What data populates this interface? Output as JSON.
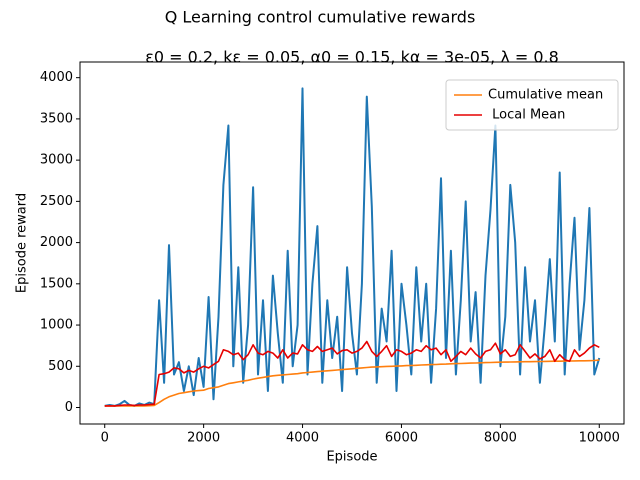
{
  "chart_data": {
    "type": "line",
    "title": "Q Learning control cumulative rewards",
    "subtitle": "ε0 = 0.2, kε = 0.05, α0 = 0.15, kα = 3e-05, λ = 0.8",
    "xlabel": "Episode",
    "ylabel": "Episode reward",
    "x": [
      0,
      100,
      200,
      300,
      400,
      500,
      600,
      700,
      800,
      900,
      1000,
      1100,
      1200,
      1300,
      1400,
      1500,
      1600,
      1700,
      1800,
      1900,
      2000,
      2100,
      2200,
      2300,
      2400,
      2500,
      2600,
      2700,
      2800,
      2900,
      3000,
      3100,
      3200,
      3300,
      3400,
      3500,
      3600,
      3700,
      3800,
      3900,
      4000,
      4100,
      4200,
      4300,
      4400,
      4500,
      4600,
      4700,
      4800,
      4900,
      5000,
      5100,
      5200,
      5300,
      5400,
      5500,
      5600,
      5700,
      5800,
      5900,
      6000,
      6100,
      6200,
      6300,
      6400,
      6500,
      6600,
      6700,
      6800,
      6900,
      7000,
      7100,
      7200,
      7300,
      7400,
      7500,
      7600,
      7700,
      7800,
      7900,
      8000,
      8100,
      8200,
      8300,
      8400,
      8500,
      8600,
      8700,
      8800,
      8900,
      9000,
      9100,
      9200,
      9300,
      9400,
      9500,
      9600,
      9700,
      9800,
      9900,
      10000
    ],
    "series": [
      {
        "color": "#1f77b4",
        "values": [
          20,
          30,
          20,
          40,
          80,
          30,
          20,
          50,
          30,
          60,
          40,
          1300,
          300,
          1970,
          400,
          550,
          200,
          500,
          150,
          600,
          250,
          1340,
          100,
          1100,
          2700,
          3420,
          500,
          1700,
          300,
          1000,
          2670,
          400,
          1300,
          200,
          1600,
          900,
          300,
          1900,
          500,
          1000,
          3870,
          400,
          1500,
          2200,
          300,
          1300,
          600,
          1100,
          200,
          1700,
          900,
          400,
          1500,
          3770,
          2440,
          300,
          1200,
          800,
          1900,
          200,
          1500,
          1000,
          400,
          1700,
          800,
          1500,
          300,
          1200,
          2780,
          600,
          1900,
          400,
          1300,
          2500,
          800,
          1400,
          300,
          1600,
          2400,
          3420,
          500,
          1100,
          2700,
          2000,
          400,
          1700,
          800,
          1300,
          300,
          1000,
          1800,
          800,
          2850,
          400,
          1500,
          2300,
          700,
          1300,
          2420,
          400,
          600
        ]
      },
      {
        "name": "Cumulative mean",
        "color": "#ff7f0e",
        "values": [
          20,
          20,
          20,
          20,
          20,
          20,
          20,
          20,
          20,
          22,
          25,
          60,
          100,
          130,
          150,
          170,
          180,
          190,
          200,
          205,
          210,
          230,
          240,
          250,
          270,
          290,
          300,
          310,
          320,
          330,
          345,
          355,
          365,
          375,
          385,
          390,
          395,
          400,
          405,
          410,
          420,
          425,
          430,
          435,
          440,
          445,
          450,
          455,
          460,
          465,
          470,
          475,
          480,
          485,
          490,
          492,
          495,
          498,
          500,
          502,
          505,
          508,
          510,
          512,
          515,
          518,
          520,
          522,
          525,
          527,
          530,
          532,
          534,
          536,
          538,
          540,
          542,
          544,
          546,
          548,
          550,
          551,
          552,
          553,
          554,
          555,
          556,
          557,
          558,
          559,
          560,
          561,
          562,
          563,
          564,
          565,
          566,
          567,
          568,
          570,
          575
        ]
      },
      {
        "name": " Local Mean",
        "color": "#e60000",
        "values": [
          20,
          20,
          20,
          25,
          30,
          30,
          25,
          30,
          30,
          35,
          40,
          400,
          410,
          430,
          480,
          470,
          420,
          450,
          430,
          470,
          500,
          480,
          520,
          560,
          700,
          680,
          640,
          660,
          580,
          640,
          760,
          660,
          640,
          680,
          660,
          600,
          700,
          600,
          660,
          650,
          760,
          700,
          680,
          740,
          680,
          700,
          720,
          650,
          690,
          700,
          660,
          680,
          720,
          800,
          680,
          620,
          680,
          750,
          620,
          700,
          680,
          640,
          660,
          700,
          680,
          750,
          700,
          720,
          640,
          700,
          560,
          620,
          680,
          640,
          720,
          650,
          600,
          680,
          700,
          780,
          650,
          700,
          620,
          640,
          760,
          680,
          600,
          650,
          590,
          620,
          700,
          560,
          640,
          580,
          560,
          700,
          620,
          660,
          720,
          760,
          730
        ]
      }
    ],
    "xlim": [
      -500,
      10500
    ],
    "ylim": [
      -200,
      4190
    ],
    "xticks": [
      0,
      2000,
      4000,
      6000,
      8000,
      10000
    ],
    "yticks": [
      0,
      500,
      1000,
      1500,
      2000,
      2500,
      3000,
      3500,
      4000
    ],
    "legend": "upper right"
  }
}
